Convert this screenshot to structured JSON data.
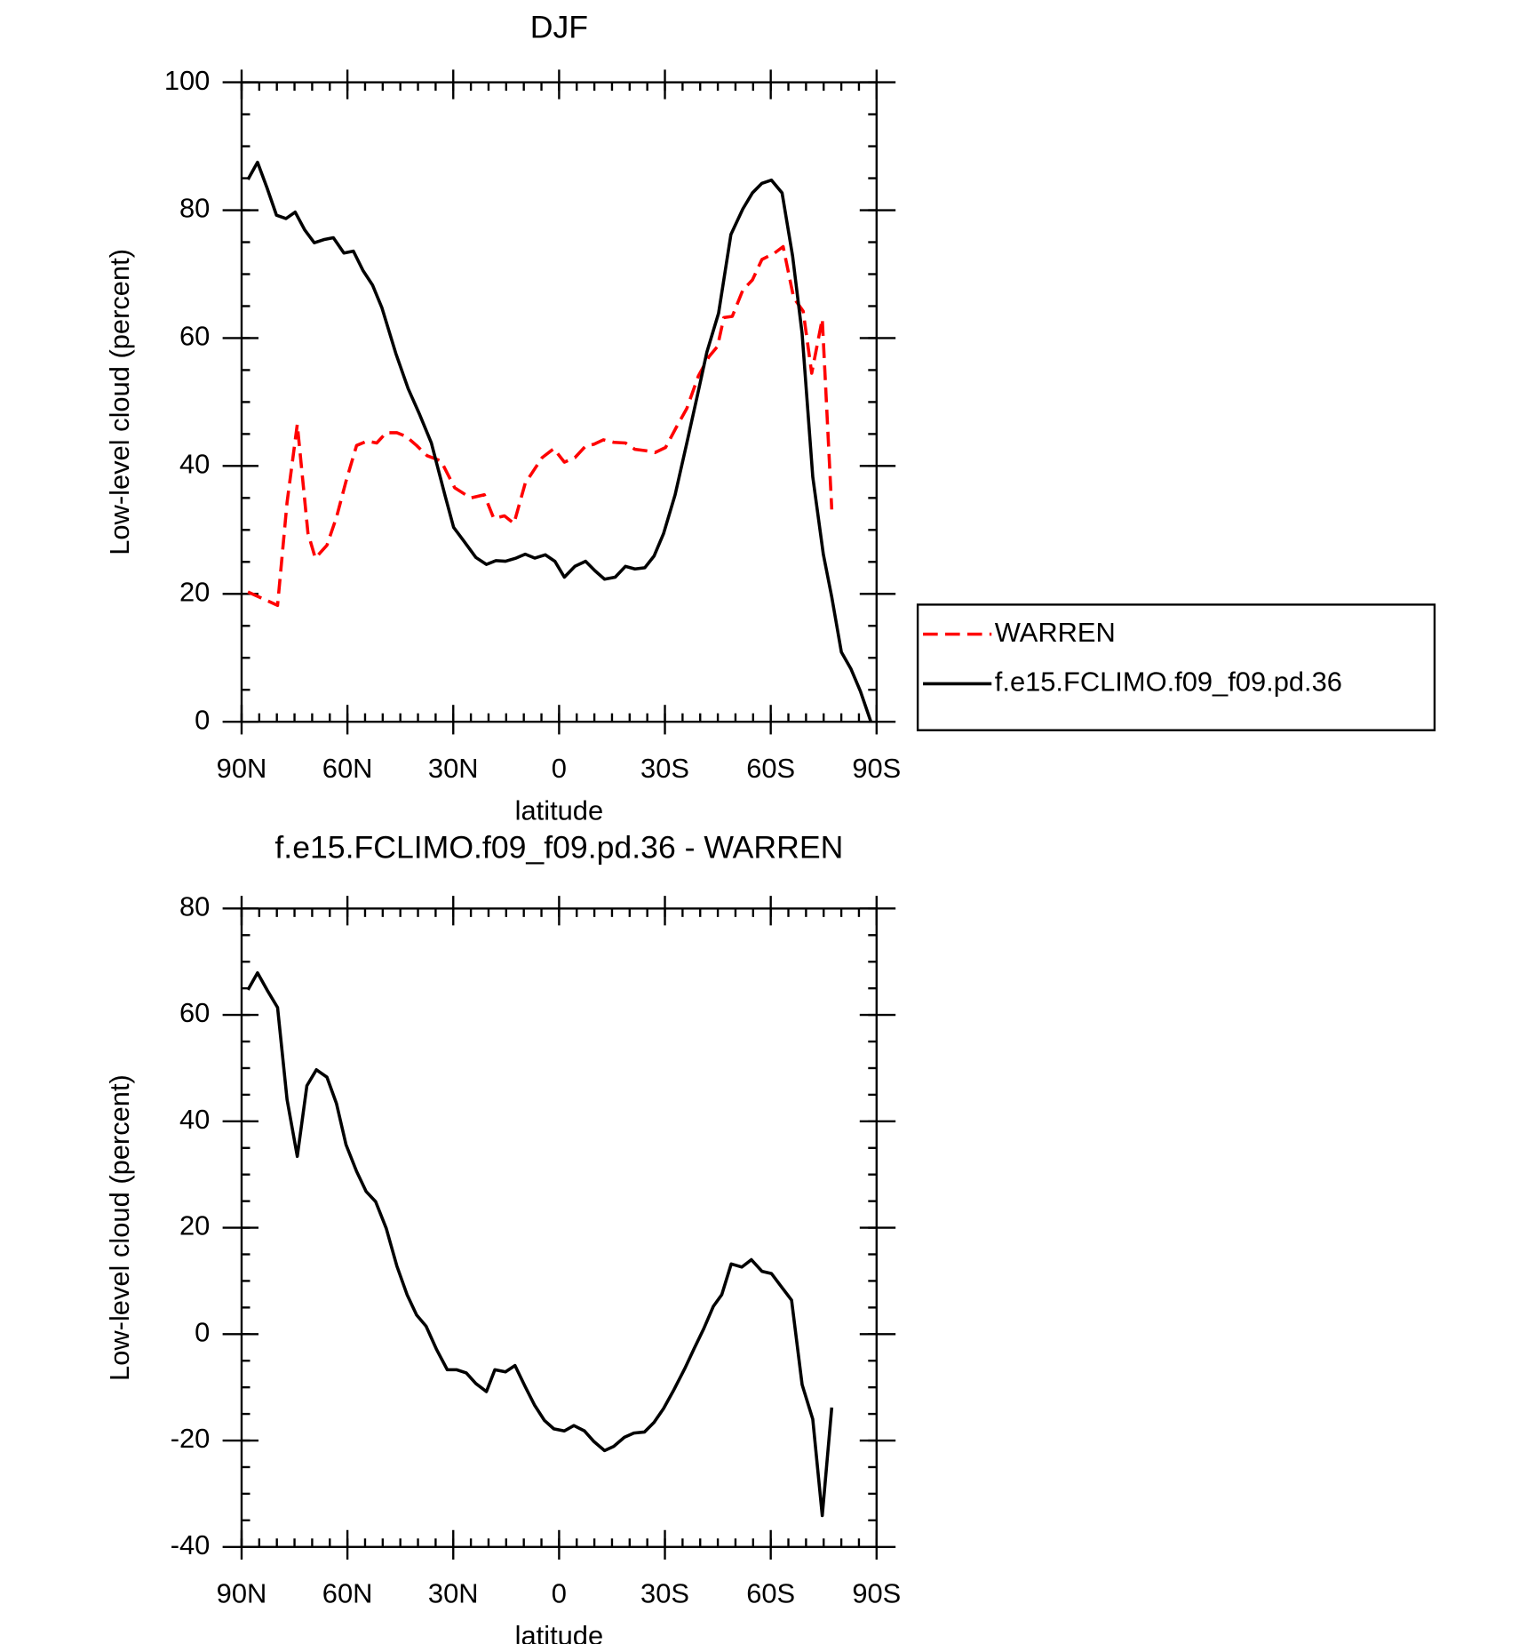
{
  "chart_data": [
    {
      "type": "line",
      "title": "DJF",
      "xlabel": "latitude",
      "ylabel": "Low-level cloud (percent)",
      "xlim": [
        90,
        -90
      ],
      "xticks": [
        {
          "value": 90,
          "label": "90N"
        },
        {
          "value": 60,
          "label": "60N"
        },
        {
          "value": 30,
          "label": "30N"
        },
        0,
        {
          "value": -30,
          "label": "30S"
        },
        {
          "value": -60,
          "label": "60S"
        },
        {
          "value": -90,
          "label": "90S"
        }
      ],
      "x_minor_step": 5,
      "ylim": [
        0,
        100
      ],
      "yticks": [
        0,
        20,
        40,
        60,
        80,
        100
      ],
      "y_minor_step": 5,
      "legend": "right",
      "series": [
        {
          "name": "WARREN",
          "color": "#ff0000",
          "dashed": true,
          "x": [
            88.2,
            79.8,
            77.1,
            74.2,
            71.2,
            69.1,
            65.8,
            63.1,
            60.4,
            57.4,
            54.4,
            51.7,
            49.0,
            46.0,
            43.3,
            40.4,
            37.4,
            33.5,
            29.6,
            25.1,
            21.2,
            18.5,
            15.5,
            12.8,
            9.6,
            4.8,
            1.5,
            -1.5,
            -4.5,
            -7.5,
            -9.9,
            -12.6,
            -15.5,
            -18.8,
            -21.5,
            -24.5,
            -27.2,
            -30.2,
            -33.2,
            -36.2,
            -39.5,
            -42.5,
            -44.9,
            -46.7,
            -49.1,
            -52.1,
            -54.8,
            -57.5,
            -61.1,
            -63.5,
            -66.5,
            -69.2,
            -71.6,
            -74.6,
            -77.3
          ],
          "values": [
            20.3,
            18.2,
            34.3,
            46.5,
            29.5,
            25.6,
            27.6,
            32.0,
            37.6,
            43.2,
            43.9,
            43.6,
            45.2,
            45.2,
            44.6,
            43.2,
            41.6,
            40.8,
            36.6,
            35.0,
            35.5,
            31.8,
            32.2,
            31.0,
            37.3,
            41.3,
            42.7,
            40.6,
            41.3,
            43.1,
            43.4,
            44.1,
            43.7,
            43.6,
            42.6,
            42.4,
            42.1,
            42.9,
            46.0,
            49.0,
            54.1,
            57.1,
            58.7,
            63.2,
            63.4,
            67.5,
            69.1,
            72.3,
            73.3,
            74.3,
            66.3,
            64.2,
            54.5,
            63.0,
            33.2
          ]
        },
        {
          "name": "f.e15.FCLIMO.f09_f09.pd.36",
          "color": "#000000",
          "dashed": false,
          "x": [
            88.2,
            85.5,
            82.8,
            80.1,
            77.4,
            74.8,
            72.1,
            69.4,
            66.7,
            64.0,
            61.0,
            58.3,
            55.6,
            52.9,
            50.2,
            46.3,
            42.8,
            39.5,
            36.2,
            32.3,
            29.9,
            26.9,
            23.6,
            20.6,
            17.9,
            15.2,
            12.2,
            9.6,
            6.9,
            3.9,
            1.2,
            -1.5,
            -4.5,
            -7.5,
            -10.2,
            -12.9,
            -15.9,
            -18.8,
            -21.5,
            -24.3,
            -26.9,
            -29.6,
            -32.9,
            -36.2,
            -39.2,
            -41.9,
            -45.2,
            -48.7,
            -52.1,
            -54.8,
            -57.5,
            -60.2,
            -63.2,
            -66.2,
            -68.9,
            -71.9,
            -74.9,
            -77.3,
            -80.0,
            -82.7,
            -85.4,
            -88.4
          ],
          "values": [
            84.8,
            87.5,
            83.5,
            79.2,
            78.7,
            79.7,
            76.9,
            74.9,
            75.4,
            75.7,
            73.3,
            73.6,
            70.6,
            68.3,
            64.7,
            57.6,
            52.1,
            48.0,
            43.6,
            35.3,
            30.4,
            28.2,
            25.7,
            24.6,
            25.2,
            25.1,
            25.6,
            26.2,
            25.6,
            26.1,
            25.1,
            22.6,
            24.3,
            25.1,
            23.6,
            22.3,
            22.6,
            24.3,
            23.9,
            24.1,
            25.9,
            29.4,
            35.5,
            43.6,
            51.0,
            57.8,
            63.9,
            76.2,
            80.2,
            82.7,
            84.2,
            84.7,
            82.7,
            72.8,
            60.7,
            38.3,
            26.2,
            19.5,
            10.9,
            8.3,
            4.8,
            0
          ]
        }
      ]
    },
    {
      "type": "line",
      "title": "f.e15.FCLIMO.f09_f09.pd.36 - WARREN",
      "xlabel": "latitude",
      "ylabel": "Low-level cloud (percent)",
      "xlim": [
        90,
        -90
      ],
      "xticks": [
        {
          "value": 90,
          "label": "90N"
        },
        {
          "value": 60,
          "label": "60N"
        },
        {
          "value": 30,
          "label": "30N"
        },
        0,
        {
          "value": -30,
          "label": "30S"
        },
        {
          "value": -60,
          "label": "60S"
        },
        {
          "value": -90,
          "label": "90S"
        }
      ],
      "x_minor_step": 5,
      "ylim": [
        -40,
        80
      ],
      "yticks": [
        -40,
        -20,
        0,
        20,
        40,
        60,
        80
      ],
      "y_minor_step": 5,
      "series": [
        {
          "color": "#000000",
          "dashed": false,
          "x": [
            88.2,
            85.5,
            82.8,
            79.8,
            77.1,
            74.2,
            71.5,
            68.8,
            65.8,
            63.1,
            60.4,
            57.4,
            54.7,
            52.0,
            49.0,
            46.0,
            43.1,
            40.4,
            37.7,
            34.7,
            31.7,
            29.0,
            26.3,
            23.6,
            20.6,
            18.2,
            15.2,
            12.5,
            9.6,
            6.9,
            4.2,
            1.5,
            -1.5,
            -4.2,
            -7.2,
            -9.9,
            -12.9,
            -15.5,
            -18.5,
            -21.2,
            -24.2,
            -26.9,
            -29.6,
            -32.6,
            -35.6,
            -38.3,
            -41.0,
            -43.7,
            -46.1,
            -48.8,
            -51.8,
            -54.5,
            -57.5,
            -60.2,
            -62.9,
            -65.9,
            -68.9,
            -71.9,
            -74.6,
            -77.3
          ],
          "values": [
            64.7,
            67.9,
            64.7,
            61.4,
            44.1,
            33.4,
            46.7,
            49.7,
            48.3,
            43.3,
            35.6,
            30.6,
            26.8,
            24.9,
            19.9,
            12.8,
            7.4,
            3.6,
            1.5,
            -2.9,
            -6.7,
            -6.7,
            -7.3,
            -9.3,
            -10.8,
            -6.7,
            -7.1,
            -5.9,
            -9.9,
            -13.4,
            -16.2,
            -17.8,
            -18.2,
            -17.2,
            -18.2,
            -20.2,
            -21.9,
            -21.1,
            -19.4,
            -18.6,
            -18.4,
            -16.6,
            -14.0,
            -10.4,
            -6.5,
            -2.7,
            1.0,
            5.2,
            7.4,
            13.2,
            12.6,
            14.0,
            11.8,
            11.4,
            9.0,
            6.4,
            -9.5,
            -16.0,
            -34.1,
            -13.8
          ]
        }
      ]
    }
  ]
}
